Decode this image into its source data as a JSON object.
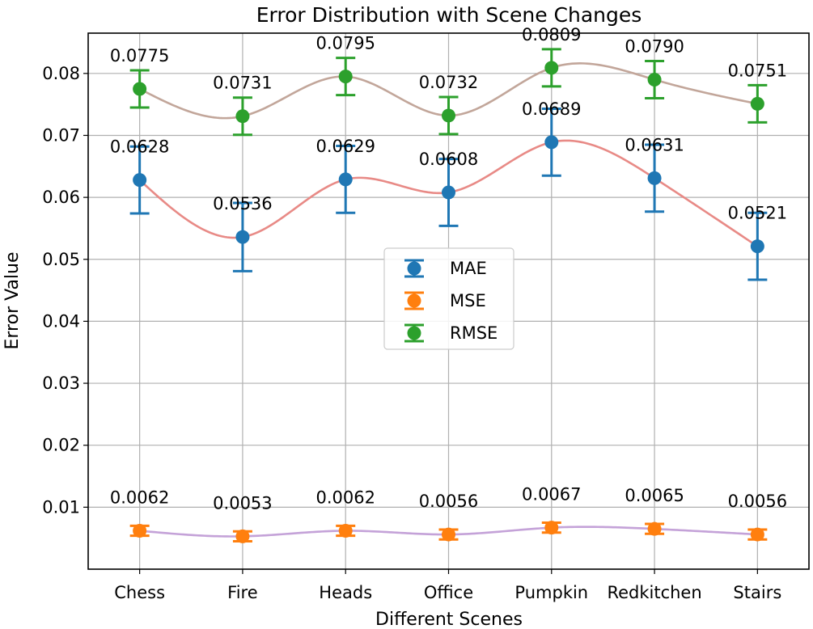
{
  "chart_data": {
    "type": "line",
    "title": "Error Distribution with Scene Changes",
    "xlabel": "Different Scenes",
    "ylabel": "Error Value",
    "categories": [
      "Chess",
      "Fire",
      "Heads",
      "Office",
      "Pumpkin",
      "Redkitchen",
      "Stairs"
    ],
    "ylim": [
      0.0,
      0.0865
    ],
    "yticks": [
      0.01,
      0.02,
      0.03,
      0.04,
      0.05,
      0.06,
      0.07,
      0.08
    ],
    "ytick_labels": [
      "0.01",
      "0.02",
      "0.03",
      "0.04",
      "0.05",
      "0.06",
      "0.07",
      "0.08"
    ],
    "grid": true,
    "legend_position": "center",
    "series": [
      {
        "name": "MAE",
        "color": "#1f77b4",
        "line_color": "#e88a86",
        "values": [
          0.0628,
          0.0536,
          0.0629,
          0.0608,
          0.0689,
          0.0631,
          0.0521
        ],
        "labels": [
          "0.0628",
          "0.0536",
          "0.0629",
          "0.0608",
          "0.0689",
          "0.0631",
          "0.0521"
        ],
        "error": [
          0.0054,
          0.0055,
          0.0054,
          0.0054,
          0.0054,
          0.0054,
          0.0054
        ]
      },
      {
        "name": "MSE",
        "color": "#ff7f0e",
        "line_color": "#c4a2d8",
        "values": [
          0.0062,
          0.0053,
          0.0062,
          0.0056,
          0.0067,
          0.0065,
          0.0056
        ],
        "labels": [
          "0.0062",
          "0.0053",
          "0.0062",
          "0.0056",
          "0.0067",
          "0.0065",
          "0.0056"
        ],
        "error": [
          0.0008,
          0.0008,
          0.0008,
          0.0008,
          0.0008,
          0.0008,
          0.0008
        ]
      },
      {
        "name": "RMSE",
        "color": "#2ca02c",
        "line_color": "#c2a69a",
        "values": [
          0.0775,
          0.0731,
          0.0795,
          0.0732,
          0.0809,
          0.079,
          0.0751
        ],
        "labels": [
          "0.0775",
          "0.0731",
          "0.0795",
          "0.0732",
          "0.0809",
          "0.0790",
          "0.0751"
        ],
        "error": [
          0.003,
          0.003,
          0.003,
          0.003,
          0.003,
          0.003,
          0.003
        ]
      }
    ]
  }
}
